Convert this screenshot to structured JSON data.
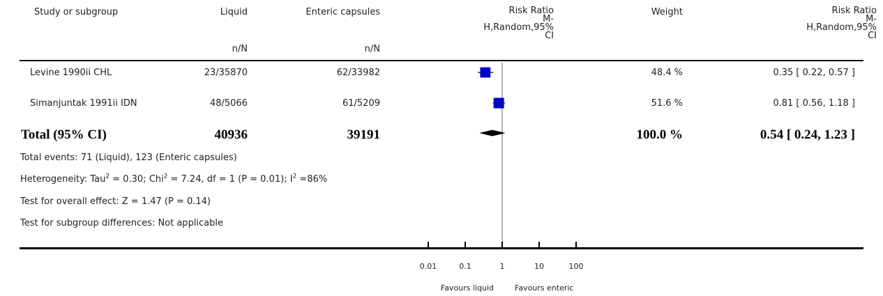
{
  "header": {
    "study_label": "Study or subgroup",
    "group1_label": "Liquid",
    "group1_sub": "n/N",
    "group2_label": "Enteric capsules",
    "group2_sub": "n/N",
    "plot_title": [
      "Risk Ratio",
      "M-",
      "H,Random,95%",
      "CI"
    ],
    "weight_label": "Weight",
    "rr_title": [
      "Risk Ratio",
      "M-",
      "H,Random,95%",
      "CI"
    ]
  },
  "studies": [
    {
      "name": "Levine 1990ii CHL",
      "group1": "23/35870",
      "group2": "62/33982",
      "weight": "48.4 %",
      "ci_text": "0.35 [ 0.22, 0.57 ]"
    },
    {
      "name": "Simanjuntak 1991ii IDN",
      "group1": "48/5066",
      "group2": "61/5209",
      "weight": "51.6 %",
      "ci_text": "0.81 [ 0.56, 1.18 ]"
    }
  ],
  "total": {
    "label": "Total (95% CI)",
    "group1": "40936",
    "group2": "39191",
    "weight": "100.0 %",
    "ci_text": "0.54 [ 0.24, 1.23 ]"
  },
  "footnotes": {
    "events": "Total events: 71 (Liquid), 123 (Enteric capsules)",
    "het_1": "Heterogeneity: Tau",
    "het_2": " = 0.30; Chi",
    "het_3": " = 7.24, df = 1 (P = 0.01); I",
    "het_4": " =86%",
    "sup": "2",
    "overall": "Test for overall effect: Z = 1.47 (P = 0.14)",
    "subgroup": "Test for subgroup differences: Not applicable"
  },
  "axis": {
    "tick_labels": [
      "0.01",
      "0.1",
      "1",
      "10",
      "100"
    ],
    "favours_left": "Favours liquid",
    "favours_right": "Favours enteric"
  },
  "chart_data": {
    "type": "forest",
    "scale": "log",
    "xlim": [
      0.01,
      100
    ],
    "ticks": [
      0.01,
      0.1,
      1,
      10,
      100
    ],
    "null_line": 1,
    "marker_color": "#0000cc",
    "studies": [
      {
        "name": "Levine 1990ii CHL",
        "rr": 0.35,
        "lower": 0.22,
        "upper": 0.57,
        "weight": 48.4
      },
      {
        "name": "Simanjuntak 1991ii IDN",
        "rr": 0.81,
        "lower": 0.56,
        "upper": 1.18,
        "weight": 51.6
      }
    ],
    "pooled": {
      "rr": 0.54,
      "lower": 0.24,
      "upper": 1.23
    }
  }
}
